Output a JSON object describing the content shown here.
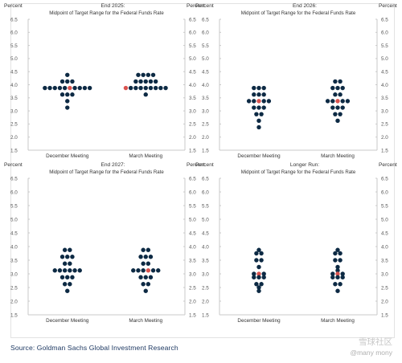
{
  "source": "Source: Goldman Sachs Global Investment Research",
  "watermark": {
    "brand": "雪球社区",
    "handle": "@many mony"
  },
  "colors": {
    "dot": "#0d2a44",
    "median": "#d9534f",
    "axis": "#c8c8c8"
  },
  "chart_data": [
    {
      "type": "scatter",
      "title": "End 2025:",
      "subtitle": "Midpoint of Target Range for the Federal Funds Rate",
      "ylabel_left": "Percent",
      "ylabel_right": "Percent",
      "ylim": [
        1.5,
        6.5
      ],
      "yticks": [
        "6.5",
        "6.0",
        "5.5",
        "5.0",
        "4.5",
        "4.0",
        "3.5",
        "3.0",
        "2.5",
        "2.0",
        "1.5"
      ],
      "categories": [
        "December Meeting",
        "March Meeting"
      ],
      "dots": [
        {
          "name": "December Meeting",
          "levels": [
            {
              "y": 4.375,
              "count": 1
            },
            {
              "y": 4.125,
              "count": 3
            },
            {
              "y": 3.875,
              "count": 10,
              "median_index": 5
            },
            {
              "y": 3.625,
              "count": 3
            },
            {
              "y": 3.375,
              "count": 1
            },
            {
              "y": 3.125,
              "count": 1
            }
          ]
        },
        {
          "name": "March Meeting",
          "levels": [
            {
              "y": 4.375,
              "count": 4
            },
            {
              "y": 4.125,
              "count": 5
            },
            {
              "y": 3.875,
              "count": 9,
              "median_index": 0
            },
            {
              "y": 3.625,
              "count": 1
            }
          ]
        }
      ]
    },
    {
      "type": "scatter",
      "title": "End 2026:",
      "subtitle": "Midpoint of Target Range for the Federal Funds Rate",
      "ylabel_left": "Percent",
      "ylabel_right": "Percent",
      "ylim": [
        1.5,
        6.5
      ],
      "yticks": [
        "6.5",
        "6.0",
        "5.5",
        "5.0",
        "4.5",
        "4.0",
        "3.5",
        "3.0",
        "2.5",
        "2.0",
        "1.5"
      ],
      "categories": [
        "December Meeting",
        "March Meeting"
      ],
      "dots": [
        {
          "name": "December Meeting",
          "levels": [
            {
              "y": 3.875,
              "count": 3
            },
            {
              "y": 3.625,
              "count": 3
            },
            {
              "y": 3.375,
              "count": 5,
              "median_index": 2
            },
            {
              "y": 3.125,
              "count": 3
            },
            {
              "y": 2.875,
              "count": 2
            },
            {
              "y": 2.625,
              "count": 1
            },
            {
              "y": 2.375,
              "count": 1
            }
          ]
        },
        {
          "name": "March Meeting",
          "levels": [
            {
              "y": 4.125,
              "count": 2
            },
            {
              "y": 3.875,
              "count": 3
            },
            {
              "y": 3.625,
              "count": 2
            },
            {
              "y": 3.375,
              "count": 5,
              "median_index": 2
            },
            {
              "y": 3.125,
              "count": 3
            },
            {
              "y": 2.875,
              "count": 2
            },
            {
              "y": 2.625,
              "count": 1
            }
          ]
        }
      ]
    },
    {
      "type": "scatter",
      "title": "End 2027:",
      "subtitle": "Midpoint of Target Range for the Federal Funds Rate",
      "ylabel_left": "Percent",
      "ylabel_right": "Percent",
      "ylim": [
        1.5,
        6.5
      ],
      "yticks": [
        "6.5",
        "6.0",
        "5.5",
        "5.0",
        "4.5",
        "4.0",
        "3.5",
        "3.0",
        "2.5",
        "2.0",
        "1.5"
      ],
      "categories": [
        "December Meeting",
        "March Meeting"
      ],
      "dots": [
        {
          "name": "December Meeting",
          "levels": [
            {
              "y": 3.875,
              "count": 2
            },
            {
              "y": 3.625,
              "count": 3
            },
            {
              "y": 3.375,
              "count": 2
            },
            {
              "y": 3.125,
              "count": 6
            },
            {
              "y": 2.875,
              "count": 3
            },
            {
              "y": 2.625,
              "count": 2
            },
            {
              "y": 2.375,
              "count": 1
            }
          ]
        },
        {
          "name": "March Meeting",
          "levels": [
            {
              "y": 3.875,
              "count": 2
            },
            {
              "y": 3.625,
              "count": 3
            },
            {
              "y": 3.375,
              "count": 2
            },
            {
              "y": 3.125,
              "count": 6,
              "median_index": 3
            },
            {
              "y": 2.875,
              "count": 3
            },
            {
              "y": 2.625,
              "count": 2
            },
            {
              "y": 2.375,
              "count": 1
            }
          ]
        }
      ]
    },
    {
      "type": "scatter",
      "title": "Longer Run:",
      "subtitle": "Midpoint of Target Range for the Federal Funds Rate",
      "ylabel_left": "Percent",
      "ylabel_right": "Percent",
      "ylim": [
        1.5,
        6.5
      ],
      "yticks": [
        "6.5",
        "6.0",
        "5.5",
        "5.0",
        "4.5",
        "4.0",
        "3.5",
        "3.0",
        "2.5",
        "2.0",
        "1.5"
      ],
      "categories": [
        "December Meeting",
        "March Meeting"
      ],
      "dots": [
        {
          "name": "December Meeting",
          "levels": [
            {
              "y": 3.875,
              "count": 1
            },
            {
              "y": 3.75,
              "count": 2
            },
            {
              "y": 3.5,
              "count": 2
            },
            {
              "y": 3.25,
              "count": 1
            },
            {
              "y": 3.0,
              "count": 3,
              "median_index": 1
            },
            {
              "y": 2.875,
              "count": 3
            },
            {
              "y": 2.625,
              "count": 2
            },
            {
              "y": 2.5,
              "count": 1
            },
            {
              "y": 2.375,
              "count": 1
            }
          ]
        },
        {
          "name": "March Meeting",
          "levels": [
            {
              "y": 3.875,
              "count": 1
            },
            {
              "y": 3.75,
              "count": 2
            },
            {
              "y": 3.5,
              "count": 2
            },
            {
              "y": 3.25,
              "count": 1
            },
            {
              "y": 3.125,
              "count": 1
            },
            {
              "y": 3.0,
              "count": 3,
              "median_index": 1
            },
            {
              "y": 2.875,
              "count": 3
            },
            {
              "y": 2.625,
              "count": 2
            },
            {
              "y": 2.375,
              "count": 1
            }
          ]
        }
      ]
    }
  ]
}
